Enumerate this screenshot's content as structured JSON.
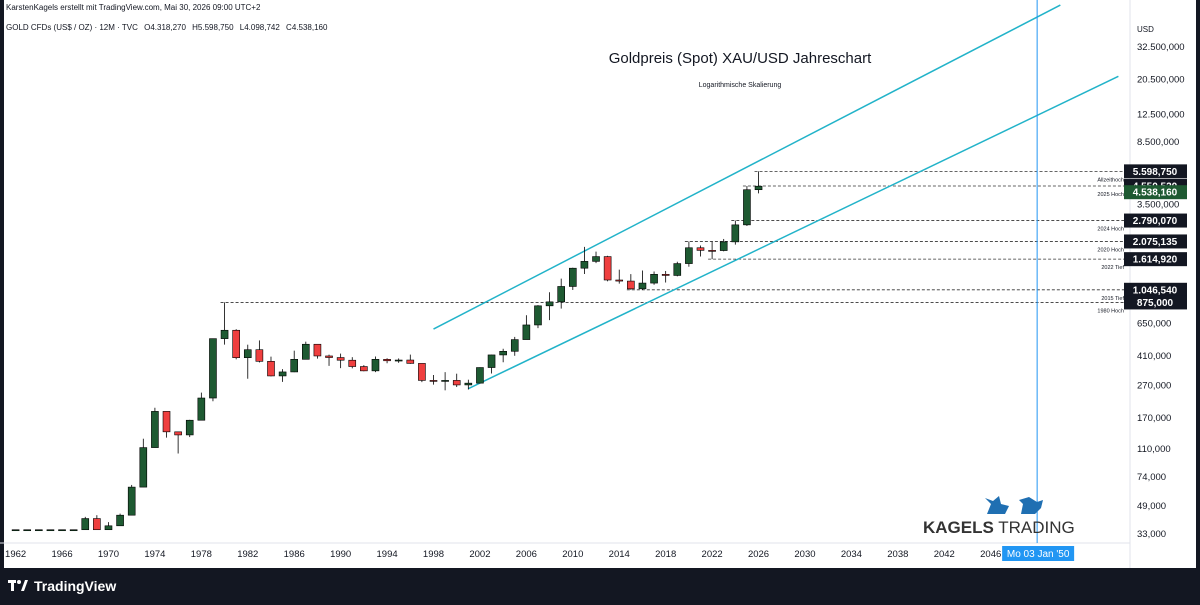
{
  "header": {
    "attribution": "KarstenKagels erstellt mit TradingView.com, Mai 30, 2026 09:00 UTC+2",
    "symbol": "GOLD CFDs (US$ / OZ) · 12M · TVC",
    "ohlc": {
      "open": "O4.318,270",
      "high": "H5.598,750",
      "low": "L4.098,742",
      "close": "C4.538,160"
    }
  },
  "title": "Goldpreis (Spot) XAU/USD Jahreschart",
  "subtitle": "Logarithmische Skalierung",
  "currency": "USD",
  "brand": {
    "name_bold": "KAGELS",
    "name_rest": " TRADING"
  },
  "footer": {
    "logo_text": "TradingView"
  },
  "cursor_label": "Mo 03 Jan '50",
  "colors": {
    "up": "#1e5a32",
    "down": "#ef3f3f",
    "channel": "#22b3c9",
    "price_tag": "#131722",
    "last_tag": "#1e5a32",
    "cursor": "#2196f3"
  },
  "chart_data": {
    "type": "candlestick",
    "scale": "log",
    "ylim": [
      29000,
      52000000
    ],
    "xlim": [
      1961,
      2058
    ],
    "x_ticks": [
      "1962",
      "1966",
      "1970",
      "1974",
      "1978",
      "1982",
      "1986",
      "1990",
      "1994",
      "1998",
      "2002",
      "2006",
      "2010",
      "2014",
      "2018",
      "2022",
      "2026",
      "2030",
      "2034",
      "2038",
      "2042",
      "2046"
    ],
    "y_ticks": [
      {
        "label": "32.500,000",
        "value": 32500000
      },
      {
        "label": "20.500,000",
        "value": 20500000
      },
      {
        "label": "12.500,000",
        "value": 12500000
      },
      {
        "label": "8.500,000",
        "value": 8500000
      },
      {
        "label": "3.500,000",
        "value": 3500000
      },
      {
        "label": "650,000",
        "value": 650000
      },
      {
        "label": "410,000",
        "value": 410000
      },
      {
        "label": "270,000",
        "value": 270000
      },
      {
        "label": "170,000",
        "value": 170000
      },
      {
        "label": "110,000",
        "value": 110000
      },
      {
        "label": "74,000",
        "value": 74000
      },
      {
        "label": "49,000",
        "value": 49000
      },
      {
        "label": "33,000",
        "value": 33000
      }
    ],
    "candles": [
      {
        "year": 1962,
        "o": 35,
        "h": 35,
        "l": 35,
        "c": 35
      },
      {
        "year": 1963,
        "o": 35,
        "h": 35,
        "l": 35,
        "c": 35
      },
      {
        "year": 1964,
        "o": 35,
        "h": 35,
        "l": 35,
        "c": 35
      },
      {
        "year": 1965,
        "o": 35,
        "h": 35,
        "l": 35,
        "c": 35
      },
      {
        "year": 1966,
        "o": 35,
        "h": 35,
        "l": 35,
        "c": 35
      },
      {
        "year": 1967,
        "o": 35,
        "h": 35,
        "l": 35,
        "c": 35
      },
      {
        "year": 1968,
        "o": 35,
        "h": 42,
        "l": 35,
        "c": 41
      },
      {
        "year": 1969,
        "o": 41,
        "h": 43,
        "l": 35,
        "c": 35
      },
      {
        "year": 1970,
        "o": 35,
        "h": 39,
        "l": 35,
        "c": 37
      },
      {
        "year": 1971,
        "o": 37,
        "h": 44,
        "l": 37,
        "c": 43
      },
      {
        "year": 1972,
        "o": 43,
        "h": 66,
        "l": 43,
        "c": 64
      },
      {
        "year": 1973,
        "o": 64,
        "h": 127,
        "l": 64,
        "c": 112
      },
      {
        "year": 1974,
        "o": 112,
        "h": 197,
        "l": 112,
        "c": 187
      },
      {
        "year": 1975,
        "o": 187,
        "h": 186,
        "l": 129,
        "c": 140
      },
      {
        "year": 1976,
        "o": 140,
        "h": 140,
        "l": 103,
        "c": 134
      },
      {
        "year": 1977,
        "o": 134,
        "h": 166,
        "l": 130,
        "c": 165
      },
      {
        "year": 1978,
        "o": 165,
        "h": 244,
        "l": 165,
        "c": 226
      },
      {
        "year": 1979,
        "o": 226,
        "h": 524,
        "l": 216,
        "c": 524
      },
      {
        "year": 1980,
        "o": 524,
        "h": 875,
        "l": 481,
        "c": 590
      },
      {
        "year": 1981,
        "o": 590,
        "h": 599,
        "l": 391,
        "c": 400
      },
      {
        "year": 1982,
        "o": 400,
        "h": 481,
        "l": 297,
        "c": 448
      },
      {
        "year": 1983,
        "o": 448,
        "h": 511,
        "l": 374,
        "c": 380
      },
      {
        "year": 1984,
        "o": 380,
        "h": 406,
        "l": 307,
        "c": 309
      },
      {
        "year": 1985,
        "o": 309,
        "h": 340,
        "l": 284,
        "c": 327
      },
      {
        "year": 1986,
        "o": 327,
        "h": 442,
        "l": 326,
        "c": 391
      },
      {
        "year": 1987,
        "o": 391,
        "h": 502,
        "l": 390,
        "c": 484
      },
      {
        "year": 1988,
        "o": 484,
        "h": 485,
        "l": 395,
        "c": 410
      },
      {
        "year": 1989,
        "o": 410,
        "h": 418,
        "l": 356,
        "c": 401
      },
      {
        "year": 1990,
        "o": 401,
        "h": 424,
        "l": 345,
        "c": 386
      },
      {
        "year": 1991,
        "o": 386,
        "h": 403,
        "l": 344,
        "c": 353
      },
      {
        "year": 1992,
        "o": 353,
        "h": 360,
        "l": 330,
        "c": 332
      },
      {
        "year": 1993,
        "o": 332,
        "h": 407,
        "l": 326,
        "c": 391
      },
      {
        "year": 1994,
        "o": 391,
        "h": 397,
        "l": 370,
        "c": 383
      },
      {
        "year": 1995,
        "o": 383,
        "h": 396,
        "l": 372,
        "c": 387
      },
      {
        "year": 1996,
        "o": 387,
        "h": 418,
        "l": 367,
        "c": 369
      },
      {
        "year": 1997,
        "o": 369,
        "h": 367,
        "l": 283,
        "c": 290
      },
      {
        "year": 1998,
        "o": 290,
        "h": 313,
        "l": 273,
        "c": 288
      },
      {
        "year": 1999,
        "o": 288,
        "h": 326,
        "l": 252,
        "c": 290
      },
      {
        "year": 2000,
        "o": 290,
        "h": 319,
        "l": 264,
        "c": 272
      },
      {
        "year": 2001,
        "o": 272,
        "h": 293,
        "l": 255,
        "c": 279
      },
      {
        "year": 2002,
        "o": 279,
        "h": 349,
        "l": 278,
        "c": 348
      },
      {
        "year": 2003,
        "o": 348,
        "h": 417,
        "l": 320,
        "c": 416
      },
      {
        "year": 2004,
        "o": 416,
        "h": 454,
        "l": 375,
        "c": 438
      },
      {
        "year": 2005,
        "o": 438,
        "h": 537,
        "l": 411,
        "c": 517
      },
      {
        "year": 2006,
        "o": 517,
        "h": 730,
        "l": 524,
        "c": 636
      },
      {
        "year": 2007,
        "o": 636,
        "h": 842,
        "l": 608,
        "c": 834
      },
      {
        "year": 2008,
        "o": 834,
        "h": 1011,
        "l": 681,
        "c": 882
      },
      {
        "year": 2009,
        "o": 882,
        "h": 1226,
        "l": 802,
        "c": 1097
      },
      {
        "year": 2010,
        "o": 1097,
        "h": 1431,
        "l": 1044,
        "c": 1421
      },
      {
        "year": 2011,
        "o": 1421,
        "h": 1921,
        "l": 1309,
        "c": 1565
      },
      {
        "year": 2012,
        "o": 1565,
        "h": 1796,
        "l": 1527,
        "c": 1675
      },
      {
        "year": 2013,
        "o": 1675,
        "h": 1694,
        "l": 1180,
        "c": 1202
      },
      {
        "year": 2014,
        "o": 1202,
        "h": 1392,
        "l": 1142,
        "c": 1184
      },
      {
        "year": 2015,
        "o": 1184,
        "h": 1307,
        "l": 1046,
        "c": 1061
      },
      {
        "year": 2016,
        "o": 1061,
        "h": 1375,
        "l": 1046,
        "c": 1151
      },
      {
        "year": 2017,
        "o": 1151,
        "h": 1357,
        "l": 1124,
        "c": 1303
      },
      {
        "year": 2018,
        "o": 1303,
        "h": 1366,
        "l": 1160,
        "c": 1282
      },
      {
        "year": 2019,
        "o": 1282,
        "h": 1557,
        "l": 1266,
        "c": 1517
      },
      {
        "year": 2020,
        "o": 1517,
        "h": 2075,
        "l": 1451,
        "c": 1898
      },
      {
        "year": 2021,
        "o": 1898,
        "h": 1959,
        "l": 1677,
        "c": 1829
      },
      {
        "year": 2022,
        "o": 1829,
        "h": 2070,
        "l": 1615,
        "c": 1824
      },
      {
        "year": 2023,
        "o": 1824,
        "h": 2150,
        "l": 1804,
        "c": 2063
      },
      {
        "year": 2024,
        "o": 2063,
        "h": 2790,
        "l": 1984,
        "c": 2625
      },
      {
        "year": 2025,
        "o": 2625,
        "h": 4550,
        "l": 2584,
        "c": 4318
      },
      {
        "year": 2026,
        "o": 4318,
        "h": 5599,
        "l": 4099,
        "c": 4538
      }
    ],
    "channel_lines": [
      {
        "name": "upper",
        "x": [
          1998,
          2052
        ],
        "y": [
          600,
          59000
        ]
      },
      {
        "name": "lower",
        "x": [
          2001,
          2057
        ],
        "y": [
          258,
          21500
        ]
      }
    ],
    "levels": [
      {
        "label": "Allzeithoch",
        "tag": "5.598,750",
        "price": 5598.75,
        "from": 2026
      },
      {
        "label": "2025 Hoch",
        "tag": "4.550,520",
        "price": 4550.52,
        "from": 2025
      },
      {
        "label": "2024 Hoch",
        "tag": "2.790,070",
        "price": 2790.07,
        "from": 2024
      },
      {
        "label": "2020 Hoch",
        "tag": "2.075,135",
        "price": 2075.135,
        "from": 2020
      },
      {
        "label": "2022 Tief",
        "tag": "1.614,920",
        "price": 1614.92,
        "from": 2022
      },
      {
        "label": "2015 Tief",
        "tag": "1.046,540",
        "price": 1046.54,
        "from": 2015
      },
      {
        "label": "1980 Hoch",
        "tag": "875,000",
        "price": 875,
        "from": 1980
      }
    ],
    "last_price": {
      "tag": "4.538,160",
      "price": 4538.16
    },
    "cursor_x": 2050
  }
}
